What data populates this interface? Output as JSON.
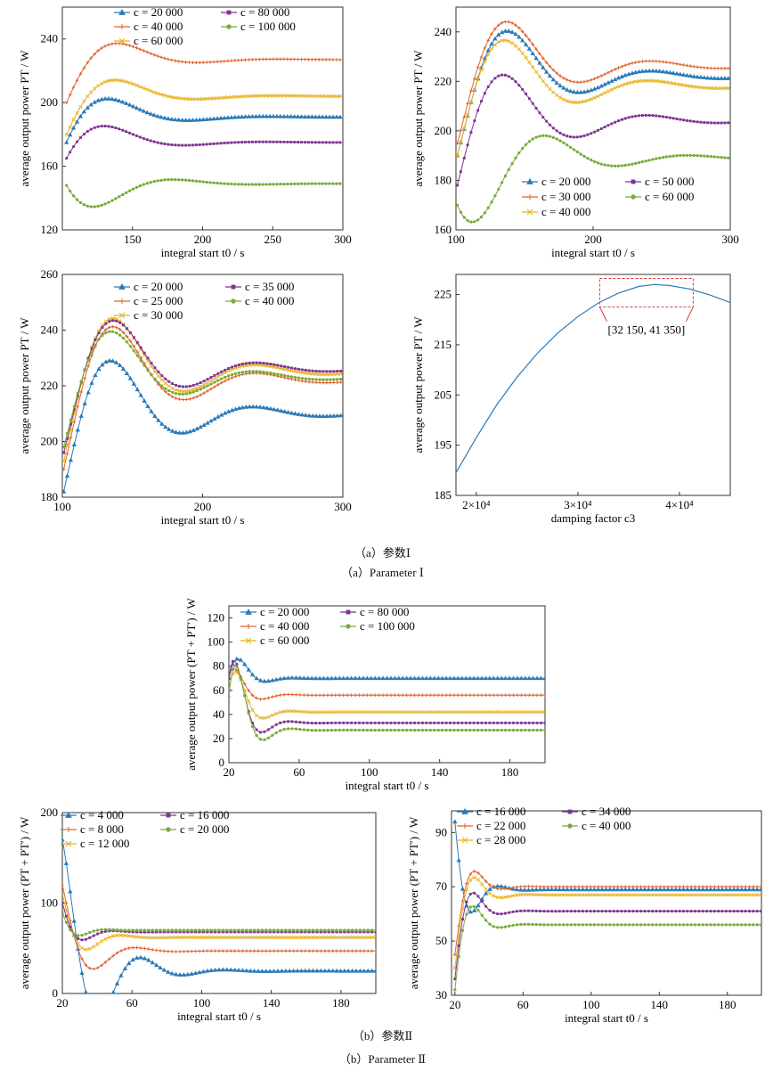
{
  "colors": {
    "blue": "#2a7ab9",
    "orange": "#e2632a",
    "yellow": "#e8b221",
    "purple": "#7e3391",
    "green": "#79ab3b",
    "annot": "#e03a3a"
  },
  "captions": {
    "a_cn": "（a）参数Ⅰ",
    "a_en": "（a）Parameter Ⅰ",
    "b_cn": "（b）参数Ⅱ",
    "b_en": "（b）Parameter Ⅱ"
  },
  "chart_data": [
    {
      "id": "a1",
      "type": "line",
      "xlabel": "integral start t0 / s",
      "ylabel": "average output power PT / W",
      "xlim": [
        100,
        300
      ],
      "ylim": [
        120,
        260
      ],
      "xticks": [
        150,
        200,
        250,
        300
      ],
      "yticks": [
        120,
        160,
        200,
        240
      ],
      "legend_cols": 2,
      "series": [
        {
          "name": "c = 20 000",
          "color": "blue",
          "marker": "triangle",
          "x_start": 103,
          "s0": 175,
          "s1": 218,
          "s2": 191,
          "freq": 0.055,
          "decay": 0.03
        },
        {
          "name": "c = 40 000",
          "color": "orange",
          "marker": "plus",
          "x_start": 103,
          "s0": 200,
          "s1": 248,
          "s2": 227,
          "freq": 0.055,
          "decay": 0.03
        },
        {
          "name": "c = 60 000",
          "color": "yellow",
          "marker": "x",
          "x_start": 103,
          "s0": 180,
          "s1": 226,
          "s2": 204,
          "freq": 0.055,
          "decay": 0.03
        },
        {
          "name": "c = 80 000",
          "color": "purple",
          "marker": "square",
          "x_start": 103,
          "s0": 165,
          "s1": 199,
          "s2": 175,
          "freq": 0.055,
          "decay": 0.03
        },
        {
          "name": "c = 100 000",
          "color": "green",
          "marker": "circle",
          "x_start": 103,
          "s0": 148,
          "s1": 120,
          "s2": 149,
          "freq": 0.055,
          "decay": 0.03
        }
      ]
    },
    {
      "id": "a2",
      "type": "line",
      "xlabel": "integral start t0 / s",
      "ylabel": "average output power PT / W",
      "xlim": [
        100,
        300
      ],
      "ylim": [
        160,
        250
      ],
      "xticks": [
        100,
        200,
        300
      ],
      "yticks": [
        160,
        180,
        200,
        220,
        240
      ],
      "legend_cols": 2,
      "series": [
        {
          "name": "c = 20 000",
          "color": "blue",
          "marker": "triangle",
          "x_start": 101,
          "s0": 190,
          "s1": 246,
          "s2": 222,
          "freq": 0.06,
          "decay": 0.02
        },
        {
          "name": "c = 30 000",
          "color": "orange",
          "marker": "plus",
          "x_start": 101,
          "s0": 195,
          "s1": 250,
          "s2": 226,
          "freq": 0.06,
          "decay": 0.02
        },
        {
          "name": "c = 40 000",
          "color": "yellow",
          "marker": "x",
          "x_start": 101,
          "s0": 190,
          "s1": 245,
          "s2": 218,
          "freq": 0.06,
          "decay": 0.02
        },
        {
          "name": "c = 50 000",
          "color": "purple",
          "marker": "square",
          "x_start": 101,
          "s0": 178,
          "s1": 232,
          "s2": 204,
          "freq": 0.06,
          "decay": 0.02
        },
        {
          "name": "c = 60 000",
          "color": "green",
          "marker": "circle",
          "x_start": 101,
          "s0": 170,
          "s1": 161,
          "s2": 189,
          "freq": 0.06,
          "decay": 0.02
        }
      ]
    },
    {
      "id": "a3",
      "type": "line",
      "xlabel": "integral start t0 / s",
      "ylabel": "average output power PT / W",
      "xlim": [
        100,
        300
      ],
      "ylim": [
        180,
        260
      ],
      "xticks": [
        100,
        200,
        300
      ],
      "yticks": [
        180,
        200,
        220,
        240,
        260
      ],
      "legend_cols": 2,
      "series": [
        {
          "name": "c = 20 000",
          "color": "blue",
          "marker": "triangle",
          "x_start": 101,
          "s0": 182,
          "s1": 237,
          "s2": 210,
          "freq": 0.062,
          "decay": 0.02
        },
        {
          "name": "c = 25 000",
          "color": "orange",
          "marker": "plus",
          "x_start": 101,
          "s0": 190,
          "s1": 247,
          "s2": 222,
          "freq": 0.062,
          "decay": 0.02
        },
        {
          "name": "c = 30 000",
          "color": "yellow",
          "marker": "x",
          "x_start": 101,
          "s0": 193,
          "s1": 250,
          "s2": 225,
          "freq": 0.062,
          "decay": 0.02
        },
        {
          "name": "c = 35 000",
          "color": "purple",
          "marker": "square",
          "x_start": 101,
          "s0": 196,
          "s1": 248,
          "s2": 226,
          "freq": 0.062,
          "decay": 0.02
        },
        {
          "name": "c = 40 000",
          "color": "green",
          "marker": "circle",
          "x_start": 101,
          "s0": 198,
          "s1": 246,
          "s2": 223,
          "freq": 0.062,
          "decay": 0.02
        }
      ]
    },
    {
      "id": "a4",
      "type": "line",
      "xlabel": "damping factor c3",
      "ylabel": "average output power PT / W",
      "xlim": [
        18000,
        45000
      ],
      "ylim": [
        185,
        229
      ],
      "xticks": [
        20000,
        30000,
        40000
      ],
      "xtick_labels": [
        "2×10⁴",
        "3×10⁴",
        "4×10⁴"
      ],
      "yticks": [
        185,
        195,
        205,
        215,
        225
      ],
      "legend_cols": 0,
      "curve": {
        "color": "blue",
        "x": [
          18000,
          20000,
          22000,
          24000,
          26000,
          28000,
          30000,
          32000,
          34000,
          36000,
          37500,
          39000,
          41000,
          43000,
          45000
        ],
        "y": [
          189.5,
          196.5,
          203,
          208.5,
          213.3,
          217.3,
          220.6,
          223.3,
          225.3,
          226.6,
          227,
          226.8,
          226.1,
          224.9,
          223.4
        ]
      },
      "annotation": {
        "label": "[32 150, 41 350]",
        "x_range": [
          32150,
          41350
        ],
        "y_range": [
          222.5,
          228.2
        ]
      }
    },
    {
      "id": "b1",
      "type": "line",
      "xlabel": "integral start t0 / s",
      "ylabel": "average output power (PT + PT′) / W",
      "xlim": [
        20,
        200
      ],
      "ylim": [
        0,
        130
      ],
      "xticks": [
        20,
        60,
        100,
        140,
        180
      ],
      "yticks": [
        0,
        20,
        40,
        60,
        80,
        100,
        120
      ],
      "legend_cols": 2,
      "series": [
        {
          "name": "c = 20 000",
          "color": "blue",
          "marker": "triangle",
          "x_start": 20,
          "s0": 70,
          "s1": 105,
          "s2": 70,
          "freq": 0.2,
          "decay": 0.12
        },
        {
          "name": "c = 40 000",
          "color": "orange",
          "marker": "plus",
          "x_start": 20,
          "s0": 72,
          "s1": 88,
          "s2": 56,
          "freq": 0.2,
          "decay": 0.12
        },
        {
          "name": "c = 60 000",
          "color": "yellow",
          "marker": "x",
          "x_start": 20,
          "s0": 60,
          "s1": 100,
          "s2": 42,
          "freq": 0.2,
          "decay": 0.12
        },
        {
          "name": "c = 80 000",
          "color": "purple",
          "marker": "square",
          "x_start": 20,
          "s0": 70,
          "s1": 110,
          "s2": 33,
          "freq": 0.2,
          "decay": 0.12
        },
        {
          "name": "c = 100 000",
          "color": "green",
          "marker": "circle",
          "x_start": 20,
          "s0": 55,
          "s1": 120,
          "s2": 27,
          "freq": 0.2,
          "decay": 0.12
        }
      ]
    },
    {
      "id": "b2",
      "type": "line",
      "xlabel": "integral start t0 / s",
      "ylabel": "average output power (PT + PT′) / W",
      "xlim": [
        20,
        200
      ],
      "ylim": [
        0,
        200
      ],
      "xticks": [
        20,
        60,
        100,
        140,
        180
      ],
      "yticks": [
        0,
        100,
        200
      ],
      "legend_cols": 2,
      "series": [
        {
          "name": "c = 4 000",
          "color": "blue",
          "marker": "triangle",
          "x_start": 20,
          "s0": 170,
          "s1": 5,
          "s2": 25,
          "freq": 0.13,
          "decay": 0.05
        },
        {
          "name": "c = 8 000",
          "color": "orange",
          "marker": "plus",
          "x_start": 20,
          "s0": 120,
          "s1": 20,
          "s2": 47,
          "freq": 0.13,
          "decay": 0.07
        },
        {
          "name": "c = 12 000",
          "color": "yellow",
          "marker": "x",
          "x_start": 20,
          "s0": 110,
          "s1": 40,
          "s2": 62,
          "freq": 0.16,
          "decay": 0.09
        },
        {
          "name": "c = 16 000",
          "color": "purple",
          "marker": "square",
          "x_start": 20,
          "s0": 100,
          "s1": 50,
          "s2": 68,
          "freq": 0.18,
          "decay": 0.11
        },
        {
          "name": "c = 20 000",
          "color": "green",
          "marker": "circle",
          "x_start": 20,
          "s0": 90,
          "s1": 55,
          "s2": 70,
          "freq": 0.2,
          "decay": 0.13
        }
      ]
    },
    {
      "id": "b3",
      "type": "line",
      "xlabel": "integral start t0 / s",
      "ylabel": "average output power (PT + PT′) / W",
      "xlim": [
        18,
        200
      ],
      "ylim": [
        30,
        98
      ],
      "xticks": [
        20,
        60,
        100,
        140,
        180
      ],
      "yticks": [
        30,
        50,
        70,
        90
      ],
      "legend_cols": 2,
      "series": [
        {
          "name": "c = 16 000",
          "color": "blue",
          "marker": "triangle",
          "x_start": 20,
          "s0": 94,
          "s1": 50,
          "s2": 69,
          "freq": 0.2,
          "decay": 0.12
        },
        {
          "name": "c = 22 000",
          "color": "orange",
          "marker": "plus",
          "x_start": 20,
          "s0": 45,
          "s1": 78,
          "s2": 70,
          "freq": 0.2,
          "decay": 0.12
        },
        {
          "name": "c = 28 000",
          "color": "yellow",
          "marker": "x",
          "x_start": 20,
          "s0": 40,
          "s1": 77,
          "s2": 67,
          "freq": 0.2,
          "decay": 0.12
        },
        {
          "name": "c = 34 000",
          "color": "purple",
          "marker": "square",
          "x_start": 20,
          "s0": 36,
          "s1": 74,
          "s2": 61,
          "freq": 0.2,
          "decay": 0.12
        },
        {
          "name": "c = 40 000",
          "color": "green",
          "marker": "circle",
          "x_start": 20,
          "s0": 32,
          "s1": 70,
          "s2": 56,
          "freq": 0.2,
          "decay": 0.12
        }
      ]
    }
  ]
}
